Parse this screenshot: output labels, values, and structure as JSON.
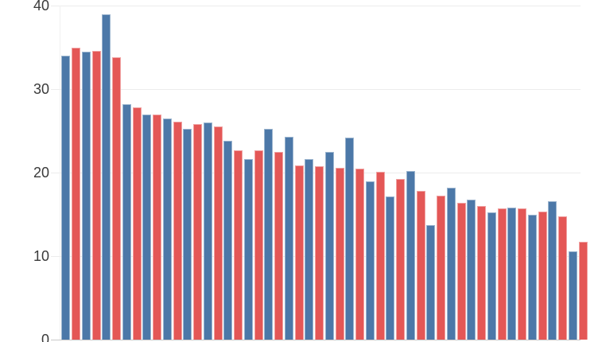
{
  "chart_data": {
    "type": "bar",
    "title": "",
    "legend": "none",
    "x_axis_labels_visible": false,
    "group_count": 26,
    "grid": "horizontal",
    "ylim": [
      0,
      40
    ],
    "yticks": [
      0,
      10,
      20,
      30,
      40
    ],
    "ytick_labels": [
      "0",
      "10",
      "20",
      "30",
      "40"
    ],
    "series": [
      {
        "name": "blue",
        "color": "#4c78a8",
        "values": [
          34.0,
          34.5,
          39.0,
          28.2,
          27.0,
          26.5,
          25.2,
          26.0,
          23.8,
          21.6,
          25.2,
          24.3,
          21.6,
          22.5,
          24.2,
          19.0,
          17.1,
          20.2,
          13.7,
          18.2,
          16.8,
          15.2,
          15.8,
          15.0,
          16.6,
          10.6
        ]
      },
      {
        "name": "red",
        "color": "#e45756",
        "values": [
          35.0,
          34.6,
          33.8,
          27.8,
          27.0,
          26.1,
          25.8,
          25.5,
          22.7,
          22.7,
          22.5,
          20.9,
          20.8,
          20.6,
          20.5,
          20.1,
          19.2,
          17.8,
          17.2,
          16.4,
          16.0,
          15.7,
          15.7,
          15.3,
          14.8,
          11.7
        ]
      }
    ],
    "colors": {
      "gridline": "#ececec",
      "axis_line": "#c9c9c9",
      "tick_label": "#3a3a3a",
      "background": "#ffffff"
    }
  }
}
